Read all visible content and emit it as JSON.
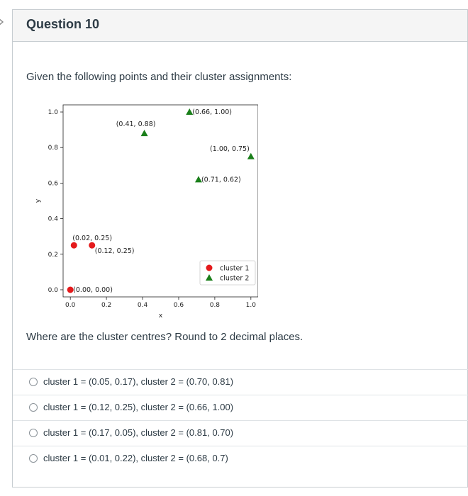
{
  "question": {
    "title": "Question 10",
    "prompt": "Given the following points and their cluster assignments:",
    "ask": "Where are the cluster centres? Round to 2 decimal places."
  },
  "answers": [
    "cluster 1 = (0.05, 0.17), cluster 2 = (0.70, 0.81)",
    "cluster 1 = (0.12, 0.25), cluster 2 = (0.66, 1.00)",
    "cluster 1 = (0.17, 0.05), cluster 2 = (0.81, 0.70)",
    "cluster 1 = (0.01, 0.22), cluster 2 = (0.68, 0.7)"
  ],
  "icons": {
    "left_arrow": "chevron-right-icon"
  },
  "colors": {
    "cluster1": "#e41a1c",
    "cluster2": "#1a7f1a"
  },
  "chart_data": {
    "type": "scatter",
    "xlabel": "x",
    "ylabel": "y",
    "xlim": [
      -0.04,
      1.04
    ],
    "ylim": [
      -0.04,
      1.04
    ],
    "xticks": [
      "0.0",
      "0.2",
      "0.4",
      "0.6",
      "0.8",
      "1.0"
    ],
    "yticks": [
      "0.0",
      "0.2",
      "0.4",
      "0.6",
      "0.8",
      "1.0"
    ],
    "legend_position": "bottom-right",
    "series": [
      {
        "name": "cluster 1",
        "marker": "circle",
        "points": [
          {
            "x": 0.0,
            "y": 0.0,
            "label": "(0.00, 0.00)"
          },
          {
            "x": 0.02,
            "y": 0.25,
            "label": "(0.02, 0.25)"
          },
          {
            "x": 0.12,
            "y": 0.25,
            "label": "(0.12, 0.25)"
          }
        ]
      },
      {
        "name": "cluster 2",
        "marker": "triangle",
        "points": [
          {
            "x": 0.41,
            "y": 0.88,
            "label": "(0.41, 0.88)"
          },
          {
            "x": 0.66,
            "y": 1.0,
            "label": "(0.66, 1.00)"
          },
          {
            "x": 1.0,
            "y": 0.75,
            "label": "(1.00, 0.75)"
          },
          {
            "x": 0.71,
            "y": 0.62,
            "label": "(0.71, 0.62)"
          }
        ]
      }
    ]
  }
}
